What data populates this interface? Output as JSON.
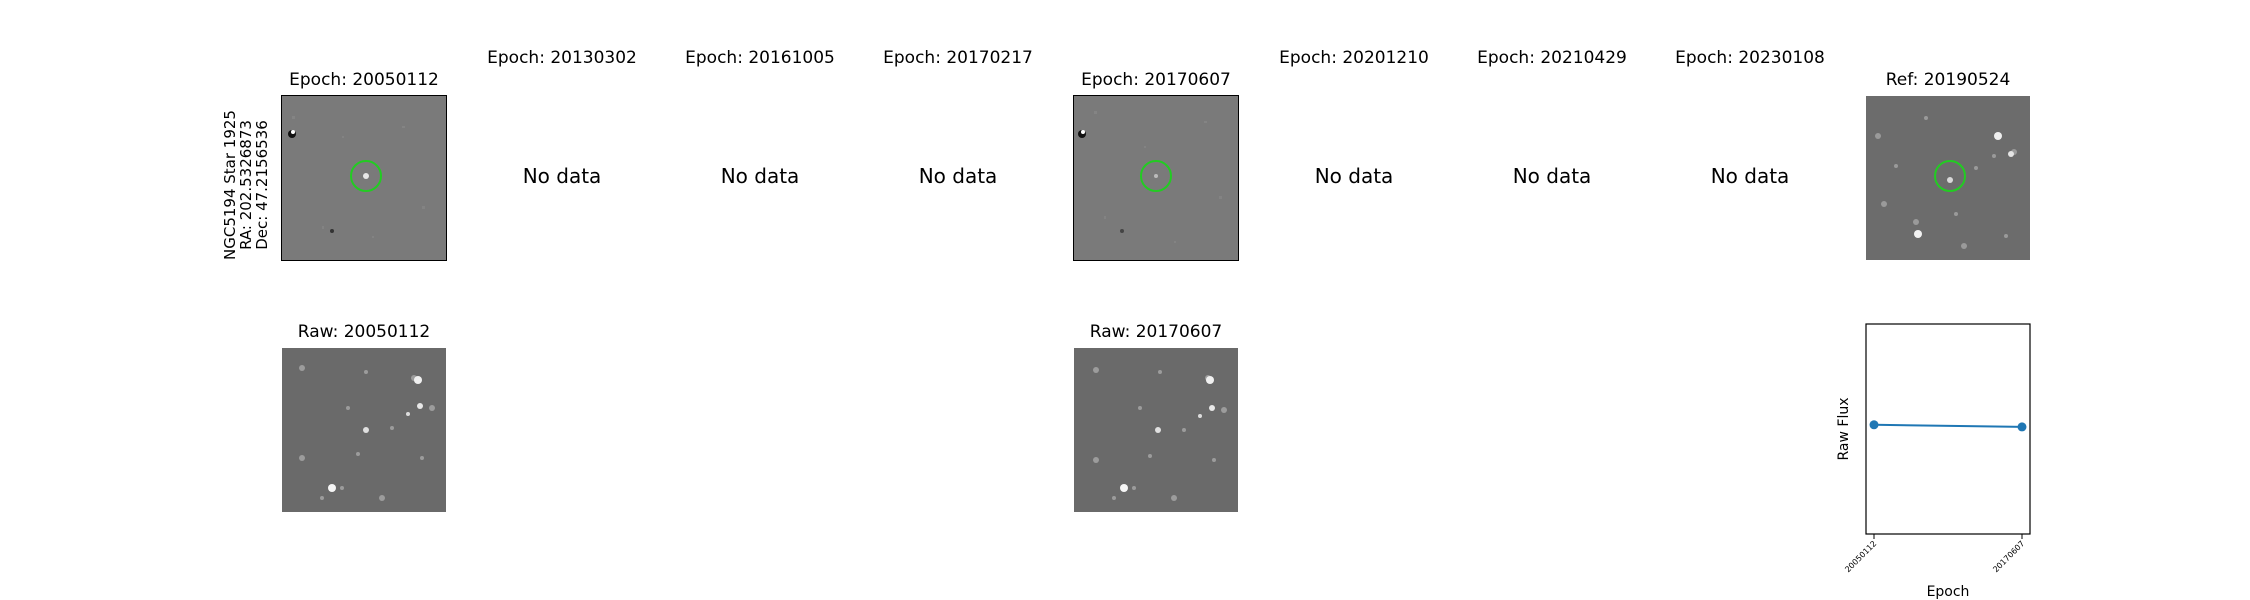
{
  "star": {
    "name": "NGC5194 Star 1925",
    "ra": "RA: 202.5326873",
    "dec": "Dec: 47.2156536"
  },
  "no_data_label": "No data",
  "epochs": [
    {
      "title": "Epoch: 20050112",
      "has_data": true
    },
    {
      "title": "Epoch: 20130302",
      "has_data": false
    },
    {
      "title": "Epoch: 20161005",
      "has_data": false
    },
    {
      "title": "Epoch: 20170217",
      "has_data": false
    },
    {
      "title": "Epoch: 20170607",
      "has_data": true
    },
    {
      "title": "Epoch: 20201210",
      "has_data": false
    },
    {
      "title": "Epoch: 20210429",
      "has_data": false
    },
    {
      "title": "Epoch: 20230108",
      "has_data": false
    }
  ],
  "reference": {
    "title": "Ref: 20190524"
  },
  "raw": [
    {
      "title": "Raw: 20050112"
    },
    {
      "title": "Raw: 20170607"
    }
  ],
  "colors": {
    "circle": "#22cc22",
    "series": "#1f77b4"
  },
  "chart_data": {
    "type": "line",
    "x": [
      "20050112",
      "20170607"
    ],
    "values": [
      0.52,
      0.51
    ],
    "ylim": [
      0,
      1
    ],
    "xlabel": "Epoch",
    "ylabel": "Raw Flux",
    "grid": false
  }
}
